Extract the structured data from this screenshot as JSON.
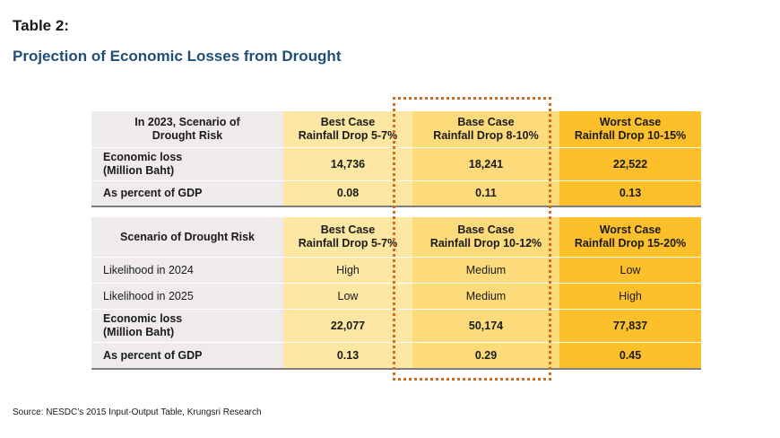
{
  "header": {
    "label": "Table 2:",
    "title": "Projection of Economic Losses from Drought"
  },
  "table_2023": {
    "header": {
      "c0": [
        "In 2023, Scenario of",
        "Drought Risk"
      ],
      "c1": [
        "Best Case",
        "Rainfall Drop 5-7%"
      ],
      "c2": [
        "Base Case",
        "Rainfall Drop 8-10%"
      ],
      "c3": [
        "Worst Case",
        "Rainfall Drop 10-15%"
      ]
    },
    "rows": [
      {
        "label": [
          "Economic loss",
          "(Million Baht)"
        ],
        "best": "14,736",
        "base": "18,241",
        "worst": "22,522"
      },
      {
        "label": [
          "As percent of GDP"
        ],
        "best": "0.08",
        "base": "0.11",
        "worst": "0.13"
      }
    ]
  },
  "table_future": {
    "header": {
      "c0": [
        "Scenario of Drought Risk"
      ],
      "c1": [
        "Best Case",
        "Rainfall Drop 5-7%"
      ],
      "c2": [
        "Base Case",
        "Rainfall Drop 10-12%"
      ],
      "c3": [
        "Worst Case",
        "Rainfall Drop 15-20%"
      ]
    },
    "rows": [
      {
        "label": [
          "Likelihood in 2024"
        ],
        "best": "High",
        "base": "Medium",
        "worst": "Low"
      },
      {
        "label": [
          "Likelihood in 2025"
        ],
        "best": "Low",
        "base": "Medium",
        "worst": "High"
      },
      {
        "label": [
          "Economic loss",
          "(Million Baht)"
        ],
        "best": "22,077",
        "base": "50,174",
        "worst": "77,837"
      },
      {
        "label": [
          "As percent of GDP"
        ],
        "best": "0.13",
        "base": "0.29",
        "worst": "0.45"
      }
    ]
  },
  "source": "Source: NESDC’s 2015 Input-Output Table, Krungsri Research",
  "colors": {
    "title": "#1f4e79",
    "label_column": "#efebec",
    "best_case": "#fde7a3",
    "base_case": "#fedb7a",
    "worst_case": "#fdc02a",
    "highlight_frame": "#d26a20"
  }
}
